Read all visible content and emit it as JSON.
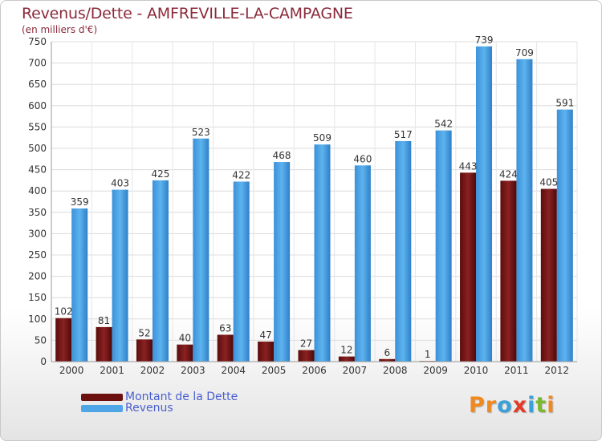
{
  "header": {
    "title": "Revenus/Dette - AMFREVILLE-LA-CAMPAGNE",
    "subtitle": "(en milliers d'€)"
  },
  "chart_data": {
    "type": "bar",
    "title": "Revenus/Dette - AMFREVILLE-LA-CAMPAGNE",
    "subtitle": "(en milliers d'€)",
    "xlabel": "",
    "ylabel": "",
    "categories": [
      "2000",
      "2001",
      "2002",
      "2003",
      "2004",
      "2005",
      "2006",
      "2007",
      "2008",
      "2009",
      "2010",
      "2011",
      "2012"
    ],
    "series": [
      {
        "name": "Montant de la Dette",
        "color": "#7a1414",
        "values": [
          102,
          81,
          52,
          40,
          63,
          47,
          27,
          12,
          6,
          1,
          443,
          424,
          405
        ]
      },
      {
        "name": "Revenus",
        "color": "#4ea6e6",
        "values": [
          359,
          403,
          425,
          523,
          422,
          468,
          509,
          460,
          517,
          542,
          739,
          709,
          591
        ]
      }
    ],
    "ylim": [
      0,
      750
    ],
    "yticks": [
      0,
      50,
      100,
      150,
      200,
      250,
      300,
      350,
      400,
      450,
      500,
      550,
      600,
      650,
      700,
      750
    ],
    "grid": true,
    "legend_position": "bottom-left"
  },
  "legend": {
    "items": [
      {
        "label": "Montant de la Dette",
        "color": "#6b0f0f"
      },
      {
        "label": "Revenus",
        "color": "#4ea6e6"
      }
    ]
  },
  "logo": {
    "letters": [
      {
        "char": "P",
        "color": "#f08a1e"
      },
      {
        "char": "r",
        "color": "#f08a1e"
      },
      {
        "char": "o",
        "color": "#3aa0d8"
      },
      {
        "char": "x",
        "color": "#e23b2a"
      },
      {
        "char": "i",
        "color": "#3aa0d8"
      },
      {
        "char": "t",
        "color": "#7ab830"
      },
      {
        "char": "i",
        "color": "#f08a1e"
      }
    ]
  }
}
